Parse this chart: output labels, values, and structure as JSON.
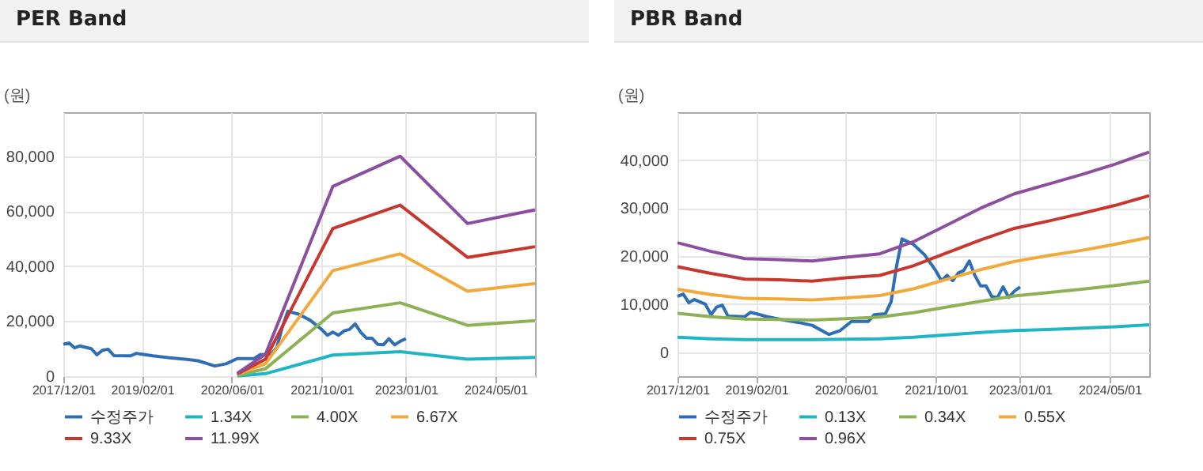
{
  "chart_data": [
    {
      "type": "line",
      "title": "PER Band",
      "ylabel": "(원)",
      "legend": "bottom",
      "grid": true,
      "line_style": "solid",
      "xlim": [
        "2017-12-01",
        "2024-12-01"
      ],
      "xticks": [
        {
          "value": "2017-12-01",
          "label": "2017/12/01"
        },
        {
          "value": "2019-02-01",
          "label": "2019/02/01"
        },
        {
          "value": "2020-06-01",
          "label": "2020/06/01"
        },
        {
          "value": "2021-10-01",
          "label": "2021/10/01"
        },
        {
          "value": "2023-01-01",
          "label": "2023/01/01"
        },
        {
          "value": "2024-05-01",
          "label": "2024/05/01"
        }
      ],
      "ylim": [
        0,
        96000
      ],
      "yticks": [
        {
          "value": 0,
          "label": "0"
        },
        {
          "value": 20000,
          "label": "20,000"
        },
        {
          "value": 40000,
          "label": "40,000"
        },
        {
          "value": 60000,
          "label": "60,000"
        },
        {
          "value": 80000,
          "label": "80,000"
        }
      ],
      "series": [
        {
          "name": "수정주가",
          "color": "#2f6db5",
          "x": [
            "2017-12",
            "2018-01",
            "2018-02",
            "2018-03",
            "2018-05",
            "2018-06",
            "2018-07",
            "2018-08",
            "2018-09",
            "2018-12",
            "2019-01",
            "2019-02",
            "2019-04",
            "2019-07",
            "2019-10",
            "2019-12",
            "2020-03",
            "2020-05",
            "2020-07",
            "2020-10",
            "2020-11",
            "2021-01",
            "2021-02",
            "2021-03",
            "2021-04",
            "2021-06",
            "2021-08",
            "2021-10",
            "2021-11",
            "2021-12",
            "2022-01",
            "2022-02",
            "2022-03",
            "2022-04",
            "2022-05",
            "2022-06",
            "2022-07",
            "2022-08",
            "2022-09",
            "2022-10",
            "2022-11",
            "2022-12",
            "2023-01"
          ],
          "values": [
            11600,
            12100,
            10300,
            11000,
            10000,
            7800,
            9400,
            9800,
            7500,
            7400,
            8300,
            8000,
            7400,
            6700,
            6100,
            5600,
            3700,
            4500,
            6400,
            6400,
            7800,
            8000,
            10500,
            17600,
            23600,
            22500,
            20300,
            17000,
            14900,
            16000,
            14900,
            16500,
            17000,
            19000,
            16000,
            13800,
            13800,
            11600,
            11400,
            13600,
            11400,
            12700,
            13600
          ]
        },
        {
          "name": "1.34X",
          "color": "#1fb5c4",
          "x": [
            "2020-07",
            "2020-12",
            "2021-12",
            "2022-12",
            "2023-12",
            "2024-12"
          ],
          "values": [
            100,
            900,
            7700,
            8900,
            6200,
            6800
          ]
        },
        {
          "name": "4.00X",
          "color": "#8db255",
          "x": [
            "2020-07",
            "2020-12",
            "2021-12",
            "2022-12",
            "2023-12",
            "2024-12"
          ],
          "values": [
            300,
            2700,
            23000,
            26700,
            18500,
            20200
          ]
        },
        {
          "name": "6.67X",
          "color": "#f2a93b",
          "x": [
            "2020-07",
            "2020-12",
            "2021-12",
            "2022-12",
            "2023-12",
            "2024-12"
          ],
          "values": [
            600,
            4500,
            38400,
            44500,
            30900,
            33700
          ]
        },
        {
          "name": "9.33X",
          "color": "#c8372d",
          "x": [
            "2020-07",
            "2020-12",
            "2021-12",
            "2022-12",
            "2023-12",
            "2024-12"
          ],
          "values": [
            800,
            6200,
            53700,
            62200,
            43200,
            47100
          ]
        },
        {
          "name": "11.99X",
          "color": "#8c4f9f",
          "x": [
            "2020-07",
            "2020-12",
            "2021-12",
            "2022-12",
            "2023-12",
            "2024-12"
          ],
          "values": [
            1000,
            8000,
            69000,
            80000,
            55500,
            60500
          ]
        }
      ]
    },
    {
      "type": "line",
      "title": "PBR Band",
      "ylabel": "(원)",
      "legend": "bottom",
      "grid": true,
      "line_style": "solid",
      "xlim": [
        "2017-12-01",
        "2024-12-01"
      ],
      "xticks": [
        {
          "value": "2017-12-01",
          "label": "2017/12/01"
        },
        {
          "value": "2019-02-01",
          "label": "2019/02/01"
        },
        {
          "value": "2020-06-01",
          "label": "2020/06/01"
        },
        {
          "value": "2021-10-01",
          "label": "2021/10/01"
        },
        {
          "value": "2023-01-01",
          "label": "2023/01/01"
        },
        {
          "value": "2024-05-01",
          "label": "2024/05/01"
        }
      ],
      "ylim": [
        -5000,
        50000
      ],
      "yticks": [
        {
          "value": 0,
          "label": "0"
        },
        {
          "value": 10000,
          "label": "10,000"
        },
        {
          "value": 20000,
          "label": "20,000"
        },
        {
          "value": 30000,
          "label": "30,000"
        },
        {
          "value": 40000,
          "label": "40,000"
        }
      ],
      "series": [
        {
          "name": "수정주가",
          "color": "#2f6db5",
          "x": [
            "2017-12",
            "2018-01",
            "2018-02",
            "2018-03",
            "2018-05",
            "2018-06",
            "2018-07",
            "2018-08",
            "2018-09",
            "2018-12",
            "2019-01",
            "2019-02",
            "2019-04",
            "2019-07",
            "2019-10",
            "2019-12",
            "2020-03",
            "2020-05",
            "2020-07",
            "2020-10",
            "2020-11",
            "2021-01",
            "2021-02",
            "2021-03",
            "2021-04",
            "2021-06",
            "2021-08",
            "2021-10",
            "2021-11",
            "2021-12",
            "2022-01",
            "2022-02",
            "2022-03",
            "2022-04",
            "2022-05",
            "2022-06",
            "2022-07",
            "2022-08",
            "2022-09",
            "2022-10",
            "2022-11",
            "2022-12",
            "2023-01"
          ],
          "values": [
            11600,
            12100,
            10300,
            11000,
            10000,
            7800,
            9400,
            9800,
            7500,
            7400,
            8300,
            8000,
            7400,
            6700,
            6100,
            5600,
            3700,
            4500,
            6400,
            6400,
            7800,
            8000,
            10500,
            17600,
            23600,
            22500,
            20300,
            17000,
            14900,
            16000,
            14900,
            16500,
            17000,
            19000,
            16000,
            13800,
            13800,
            11600,
            11400,
            13600,
            11400,
            12700,
            13600
          ]
        },
        {
          "name": "0.13X",
          "color": "#1fb5c4",
          "x": [
            "2017-12",
            "2018-06",
            "2018-12",
            "2019-06",
            "2019-12",
            "2020-06",
            "2020-12",
            "2021-06",
            "2021-12",
            "2022-06",
            "2022-12",
            "2023-06",
            "2023-12",
            "2024-06",
            "2024-12"
          ],
          "values": [
            3100,
            2800,
            2600,
            2600,
            2600,
            2700,
            2800,
            3100,
            3600,
            4100,
            4500,
            4700,
            5000,
            5300,
            5700
          ]
        },
        {
          "name": "0.34X",
          "color": "#8db255",
          "x": [
            "2017-12",
            "2018-06",
            "2018-12",
            "2019-06",
            "2019-12",
            "2020-06",
            "2020-12",
            "2021-06",
            "2021-12",
            "2022-06",
            "2022-12",
            "2023-06",
            "2023-12",
            "2024-06",
            "2024-12"
          ],
          "values": [
            8100,
            7400,
            6900,
            6800,
            6700,
            7000,
            7300,
            8200,
            9400,
            10600,
            11700,
            12400,
            13100,
            13900,
            14800
          ]
        },
        {
          "name": "0.55X",
          "color": "#f2a93b",
          "x": [
            "2017-12",
            "2018-06",
            "2018-12",
            "2019-06",
            "2019-12",
            "2020-06",
            "2020-12",
            "2021-06",
            "2021-12",
            "2022-06",
            "2022-12",
            "2023-06",
            "2023-12",
            "2024-06",
            "2024-12"
          ],
          "values": [
            13100,
            12000,
            11200,
            11100,
            10900,
            11300,
            11800,
            13200,
            15200,
            17200,
            18900,
            20100,
            21200,
            22500,
            23900
          ]
        },
        {
          "name": "0.75X",
          "color": "#c8372d",
          "x": [
            "2017-12",
            "2018-06",
            "2018-12",
            "2019-06",
            "2019-12",
            "2020-06",
            "2020-12",
            "2021-06",
            "2021-12",
            "2022-06",
            "2022-12",
            "2023-06",
            "2023-12",
            "2024-06",
            "2024-12"
          ],
          "values": [
            17800,
            16400,
            15200,
            15100,
            14800,
            15500,
            16000,
            18000,
            20700,
            23400,
            25800,
            27300,
            28900,
            30600,
            32600
          ]
        },
        {
          "name": "0.96X",
          "color": "#8c4f9f",
          "x": [
            "2017-12",
            "2018-06",
            "2018-12",
            "2019-06",
            "2019-12",
            "2020-06",
            "2020-12",
            "2021-06",
            "2021-12",
            "2022-06",
            "2022-12",
            "2023-06",
            "2023-12",
            "2024-06",
            "2024-12"
          ],
          "values": [
            22800,
            21000,
            19500,
            19300,
            19000,
            19800,
            20500,
            23000,
            26500,
            30000,
            33000,
            35000,
            37000,
            39200,
            41700
          ]
        }
      ]
    }
  ]
}
